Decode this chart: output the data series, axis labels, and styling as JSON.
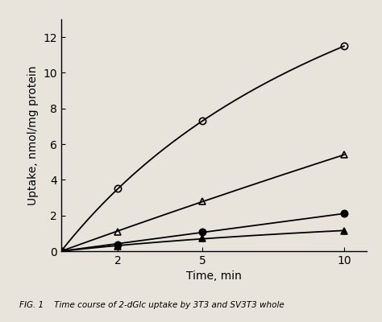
{
  "title": "",
  "xlabel": "Time, min",
  "ylabel": "Uptake, nmol/mg protein",
  "xlim": [
    0,
    10.8
  ],
  "ylim": [
    0,
    13
  ],
  "xticks": [
    2,
    5,
    10
  ],
  "yticks": [
    0,
    2,
    4,
    6,
    8,
    10,
    12
  ],
  "series": [
    {
      "name": "open_circle",
      "x": [
        0,
        2,
        5,
        10
      ],
      "y": [
        0,
        3.5,
        7.3,
        11.5
      ],
      "marker": "o",
      "fillstyle": "none",
      "color": "#000000",
      "linewidth": 1.3,
      "markersize": 6
    },
    {
      "name": "open_triangle",
      "x": [
        0,
        2,
        5,
        10
      ],
      "y": [
        0,
        1.1,
        2.8,
        5.4
      ],
      "marker": "^",
      "fillstyle": "none",
      "color": "#000000",
      "linewidth": 1.3,
      "markersize": 6
    },
    {
      "name": "filled_circle",
      "x": [
        0,
        2,
        5,
        10
      ],
      "y": [
        0,
        0.35,
        1.1,
        2.1
      ],
      "marker": "o",
      "fillstyle": "full",
      "color": "#000000",
      "linewidth": 1.3,
      "markersize": 6
    },
    {
      "name": "filled_triangle",
      "x": [
        0,
        2,
        5,
        10
      ],
      "y": [
        0,
        0.28,
        0.72,
        1.15
      ],
      "marker": "^",
      "fillstyle": "full",
      "color": "#000000",
      "linewidth": 1.3,
      "markersize": 6
    }
  ],
  "caption": "FIG. 1    Time course of 2-dGlc uptake by 3T3 and SV3T3 whole",
  "background_color": "#e8e4dc",
  "axis_bg_color": "#e8e4dc",
  "figsize": [
    4.74,
    4.0
  ],
  "dpi": 100
}
